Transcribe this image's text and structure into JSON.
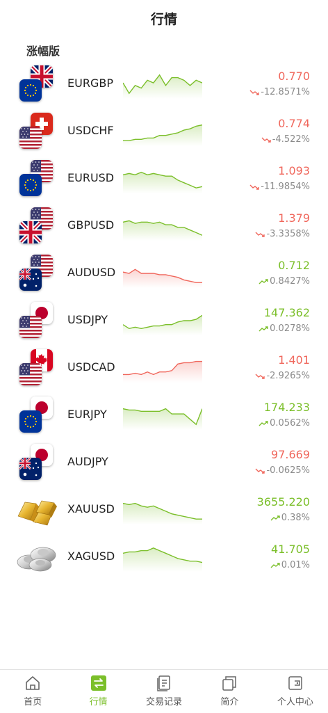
{
  "header": {
    "title": "行情"
  },
  "section_title": "涨幅版",
  "colors": {
    "up": "#7bbf2a",
    "down": "#f0675c",
    "muted": "#8a8a8a"
  },
  "quotes": [
    {
      "symbol": "EURGBP",
      "base": "gb",
      "quote": "eu",
      "price": "0.770",
      "change": "-12.8571%",
      "direction": "down",
      "trend": "up",
      "spark": [
        4,
        8,
        5,
        6,
        3,
        4,
        1,
        5,
        2,
        2,
        3,
        5,
        3,
        4
      ]
    },
    {
      "symbol": "USDCHF",
      "base": "ch",
      "quote": "us",
      "price": "0.774",
      "change": "-4.522%",
      "direction": "down",
      "trend": "up",
      "spark": [
        8,
        8,
        7.5,
        7.5,
        7,
        7,
        6,
        6,
        5.5,
        5,
        4,
        3.5,
        2.5,
        2
      ]
    },
    {
      "symbol": "EURUSD",
      "base": "us",
      "quote": "eu",
      "price": "1.093",
      "change": "-11.9854%",
      "direction": "down",
      "trend": "up",
      "spark": [
        3,
        2.5,
        3,
        2,
        3,
        2.5,
        3,
        3.5,
        3.5,
        5,
        6,
        7,
        8,
        7.5
      ]
    },
    {
      "symbol": "GBPUSD",
      "base": "us",
      "quote": "gb",
      "price": "1.379",
      "change": "-3.3358%",
      "direction": "down",
      "trend": "up",
      "spark": [
        3,
        2.5,
        3.5,
        3,
        3,
        3.5,
        3,
        4,
        4,
        5,
        5,
        6,
        7,
        8
      ]
    },
    {
      "symbol": "AUDUSD",
      "base": "us",
      "quote": "au",
      "price": "0.712",
      "change": "0.8427%",
      "direction": "up",
      "trend": "down",
      "spark": [
        4,
        4.5,
        3,
        4.5,
        4.5,
        4.5,
        5,
        5,
        5.5,
        6,
        7,
        7.5,
        8,
        8
      ]
    },
    {
      "symbol": "USDJPY",
      "base": "jp",
      "quote": "us",
      "price": "147.362",
      "change": "0.0278%",
      "direction": "up",
      "trend": "up",
      "spark": [
        6,
        7.5,
        7,
        7.5,
        7,
        6.5,
        6.5,
        6,
        6,
        5,
        4.5,
        4.5,
        4,
        2.5
      ]
    },
    {
      "symbol": "USDCAD",
      "base": "ca",
      "quote": "us",
      "price": "1.401",
      "change": "-2.9265%",
      "direction": "down",
      "trend": "down",
      "spark": [
        7,
        7,
        6.5,
        7,
        6,
        7,
        6,
        6,
        5.5,
        3,
        2.5,
        2.5,
        2,
        2
      ]
    },
    {
      "symbol": "EURJPY",
      "base": "jp",
      "quote": "eu",
      "price": "174.233",
      "change": "0.0562%",
      "direction": "up",
      "trend": "up",
      "spark": [
        2,
        2.5,
        2.5,
        3,
        3,
        3,
        3,
        2,
        4,
        4,
        4,
        6,
        8,
        2
      ]
    },
    {
      "symbol": "AUDJPY",
      "base": "jp",
      "quote": "au",
      "price": "97.669",
      "change": "-0.0625%",
      "direction": "down",
      "trend": "none",
      "spark": []
    },
    {
      "symbol": "XAUUSD",
      "base": "gold",
      "quote": "",
      "price": "3655.220",
      "change": "0.38%",
      "direction": "up",
      "trend": "up",
      "spark": [
        2,
        2.5,
        2,
        3,
        3.5,
        3,
        4,
        5,
        6,
        6.5,
        7,
        7.5,
        8,
        8
      ]
    },
    {
      "symbol": "XAGUSD",
      "base": "silver",
      "quote": "",
      "price": "41.705",
      "change": "0.01%",
      "direction": "up",
      "trend": "up",
      "spark": [
        3,
        2.5,
        2.5,
        2,
        2,
        1,
        2,
        3,
        4,
        5,
        5.5,
        6,
        6,
        6.5
      ]
    }
  ],
  "tabbar": {
    "items": [
      {
        "label": "首页",
        "icon": "home-icon",
        "active": false
      },
      {
        "label": "行情",
        "icon": "market-icon",
        "active": true
      },
      {
        "label": "交易记录",
        "icon": "records-icon",
        "active": false
      },
      {
        "label": "简介",
        "icon": "intro-icon",
        "active": false
      },
      {
        "label": "个人中心",
        "icon": "profile-icon",
        "active": false
      }
    ]
  }
}
